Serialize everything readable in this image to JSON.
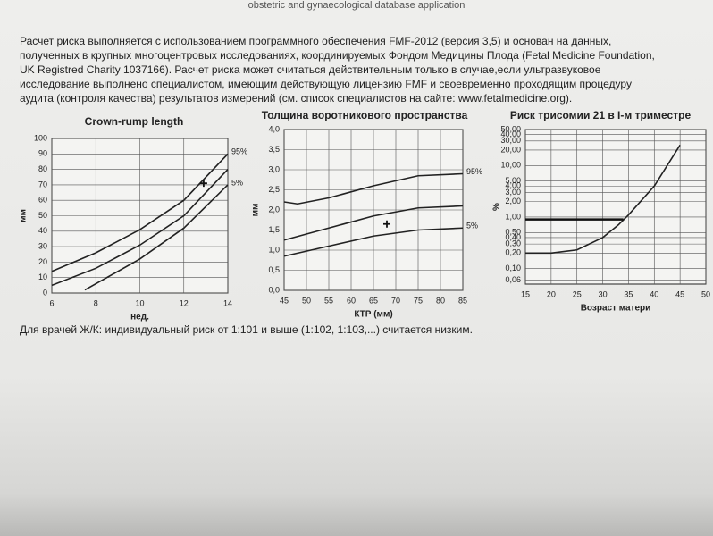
{
  "header": "obstetric and gynaecological database application",
  "paragraph": [
    "Расчет риска выполняется с использованием программного обеспечения FMF-2012 (версия 3,5) и основан на данных,",
    "полученных в крупных многоцентровых исследованиях, координируемых Фондом Медицины Плода (Fetal Medicine Foundation,",
    "UK Registred Charity 1037166). Расчет риска может считаться действительным только в случае,если ультразвуковое",
    "исследование выполнено специалистом, имеющим действующую лицензию FMF и своевременно проходящим процедуру",
    "аудита (контроля качества) результатов измерений (см. список специалистов на сайте: www.fetalmedicine.org)."
  ],
  "footer": "Для врачей Ж/К: индивидуальный риск от 1:101 и выше (1:102, 1:103,...) считается низким.",
  "chart_data": [
    {
      "type": "line",
      "title": "Crown-rump length",
      "xlabel": "нед.",
      "ylabel": "мм",
      "xlim": [
        6,
        14
      ],
      "xticks": [
        6,
        8,
        10,
        12,
        14
      ],
      "ylim": [
        0,
        100
      ],
      "yticks": [
        0,
        10,
        20,
        30,
        40,
        50,
        60,
        70,
        80,
        90,
        100
      ],
      "grid": true,
      "series": [
        {
          "name": "95%",
          "color": "#222",
          "x": [
            6,
            8,
            10,
            12,
            14
          ],
          "values": [
            14,
            26,
            41,
            60,
            90
          ]
        },
        {
          "name": null,
          "color": "#222",
          "x": [
            6,
            8,
            10,
            12,
            14
          ],
          "values": [
            5,
            16,
            31,
            50,
            80
          ]
        },
        {
          "name": "5%",
          "color": "#222",
          "x": [
            7.5,
            10,
            12,
            14
          ],
          "values": [
            2,
            22,
            42,
            70
          ]
        }
      ],
      "marker": {
        "x": 12.9,
        "y": 71
      }
    },
    {
      "type": "line",
      "title": "Толщина воротникового пространства",
      "xlabel": "КТР (мм)",
      "ylabel": "мм",
      "xlim": [
        45,
        85
      ],
      "xticks": [
        45,
        50,
        55,
        60,
        65,
        70,
        75,
        80,
        85
      ],
      "ylim": [
        0,
        4
      ],
      "yticks": [
        {
          "value": 0,
          "label": "0,0"
        },
        {
          "value": 0.5,
          "label": "0,5"
        },
        {
          "value": 1,
          "label": "1,0"
        },
        {
          "value": 1.5,
          "label": "1,5"
        },
        {
          "value": 2,
          "label": "2,0"
        },
        {
          "value": 2.5,
          "label": "2,5"
        },
        {
          "value": 3,
          "label": "3,0"
        },
        {
          "value": 3.5,
          "label": "3,5"
        },
        {
          "value": 4,
          "label": "4,0"
        }
      ],
      "grid": true,
      "series": [
        {
          "name": "95%",
          "color": "#222",
          "x": [
            45,
            48,
            55,
            65,
            75,
            85
          ],
          "values": [
            2.2,
            2.15,
            2.3,
            2.6,
            2.85,
            2.9
          ]
        },
        {
          "name": null,
          "color": "#222",
          "x": [
            45,
            55,
            65,
            75,
            85
          ],
          "values": [
            1.25,
            1.55,
            1.85,
            2.05,
            2.1
          ]
        },
        {
          "name": "5%",
          "color": "#222",
          "x": [
            45,
            55,
            65,
            75,
            85
          ],
          "values": [
            0.85,
            1.1,
            1.35,
            1.5,
            1.55
          ]
        }
      ],
      "marker": {
        "x": 68,
        "y": 1.65
      }
    },
    {
      "type": "line",
      "title": "Риск трисомии 21 в I-м триместре",
      "xlabel": "Возраст матери",
      "ylabel": "%",
      "xlim": [
        15,
        50
      ],
      "xticks": [
        15,
        20,
        25,
        30,
        35,
        40,
        45,
        50
      ],
      "ylim": [
        0.05,
        50
      ],
      "log_y": true,
      "yticks": [
        {
          "value": 0.06,
          "label": "0,06"
        },
        {
          "value": 0.1,
          "label": "0,10"
        },
        {
          "value": 0.2,
          "label": "0,20"
        },
        {
          "value": 0.3,
          "label": "0,30"
        },
        {
          "value": 0.4,
          "label": "0,40"
        },
        {
          "value": 0.5,
          "label": "0,50"
        },
        {
          "value": 1,
          "label": "1,00"
        },
        {
          "value": 2,
          "label": "2,00"
        },
        {
          "value": 3,
          "label": "3,00"
        },
        {
          "value": 4,
          "label": "4,00"
        },
        {
          "value": 5,
          "label": "5,00"
        },
        {
          "value": 10,
          "label": "10,00"
        },
        {
          "value": 20,
          "label": "20,00"
        },
        {
          "value": 30,
          "label": "30,00"
        },
        {
          "value": 40,
          "label": "40,00"
        },
        {
          "value": 50,
          "label": "50,00"
        }
      ],
      "grid": true,
      "series": [
        {
          "name": null,
          "color": "#222",
          "x": [
            15,
            20,
            25,
            30,
            33,
            35,
            40,
            45
          ],
          "values": [
            0.2,
            0.2,
            0.23,
            0.4,
            0.7,
            1.1,
            4,
            25
          ]
        }
      ],
      "threshold": {
        "y": 0.9,
        "x": [
          15,
          34
        ]
      }
    }
  ]
}
